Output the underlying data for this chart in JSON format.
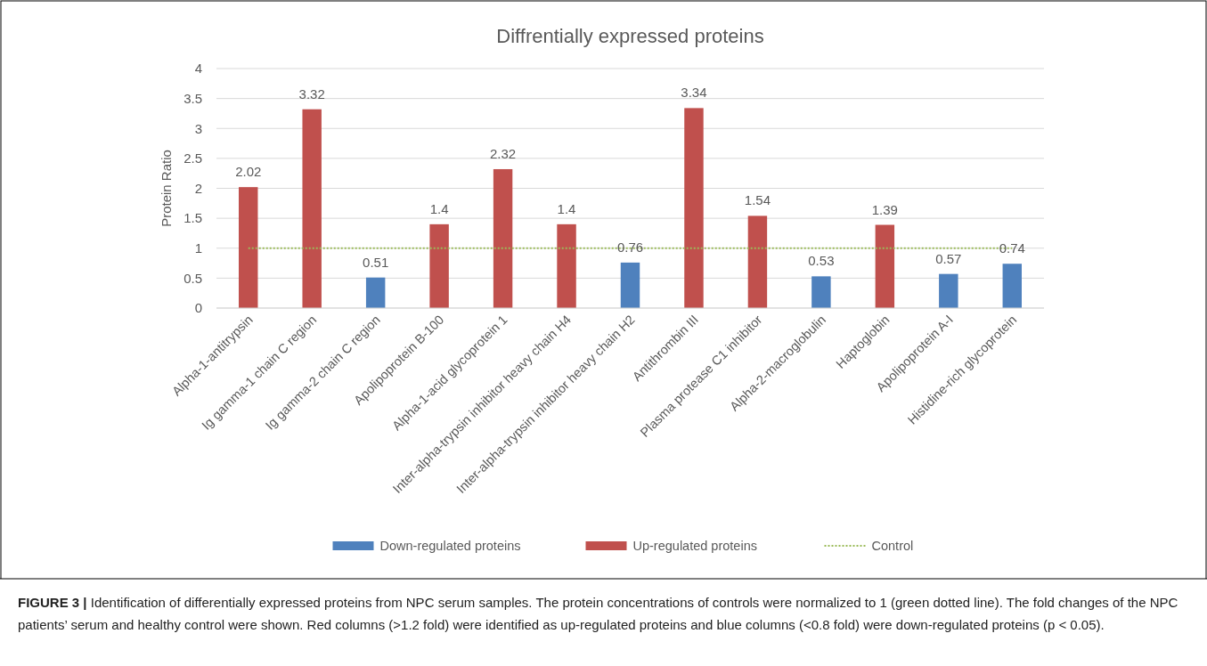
{
  "chart_data": {
    "type": "bar",
    "title": "Diffrentially expressed proteins",
    "ylabel": "Protein Ratio",
    "categories": [
      "Alpha-1-antitrypsin",
      "Ig gamma-1 chain C region",
      "Ig gamma-2 chain C region",
      "Apolipoprotein B-100",
      "Alpha-1-acid glycoprotein 1",
      "Inter-alpha-trypsin inhibitor heavy chain H4",
      "Inter-alpha-trypsin inhibitor heavy chain H2",
      "Antithrombin III",
      "Plasma protease C1 inhibitor",
      "Alpha-2-macroglobulin",
      "Haptoglobin",
      "Apolipoprotein A-I",
      "Histidine-rich glycoprotein"
    ],
    "series": [
      {
        "name": "Down-regulated proteins",
        "color": "#4f81bd",
        "values": [
          null,
          null,
          0.51,
          null,
          null,
          null,
          0.76,
          null,
          null,
          0.53,
          null,
          0.57,
          0.74
        ],
        "value_labels": [
          null,
          null,
          "0.51",
          null,
          null,
          null,
          "0.76",
          null,
          null,
          "0.53",
          null,
          "0.57",
          "0.74"
        ]
      },
      {
        "name": "Up-regulated proteins",
        "color": "#c0504d",
        "values": [
          2.02,
          3.32,
          null,
          1.4,
          2.32,
          1.4,
          null,
          3.34,
          1.54,
          null,
          1.39,
          null,
          null
        ],
        "value_labels": [
          "2.02",
          "3.32",
          null,
          "1.4",
          "2.32",
          "1.4",
          null,
          "3.34",
          "1.54",
          null,
          "1.39",
          null,
          null
        ]
      },
      {
        "name": "Control",
        "type": "line",
        "color": "#9bbb59",
        "line_style": "dotted",
        "values": [
          1,
          1,
          1,
          1,
          1,
          1,
          1,
          1,
          1,
          1,
          1,
          1,
          1
        ]
      }
    ],
    "stacked": true,
    "ylim": [
      0,
      4
    ],
    "yticks": [
      0,
      0.5,
      1,
      1.5,
      2,
      2.5,
      3,
      3.5,
      4
    ],
    "grid": "y",
    "legend": "bottom",
    "annotations": [
      "FIGURE 3 | Identification of differentially expressed proteins from NPC serum samples. The protein concentrations of controls were normalized to 1 (green dotted line). The fold changes of the NPC patients’ serum and healthy control were shown. Red columns (>1.2 fold) were identified as up-regulated proteins and blue columns (<0.8 fold) were down-regulated proteins (p < 0.05)."
    ]
  }
}
